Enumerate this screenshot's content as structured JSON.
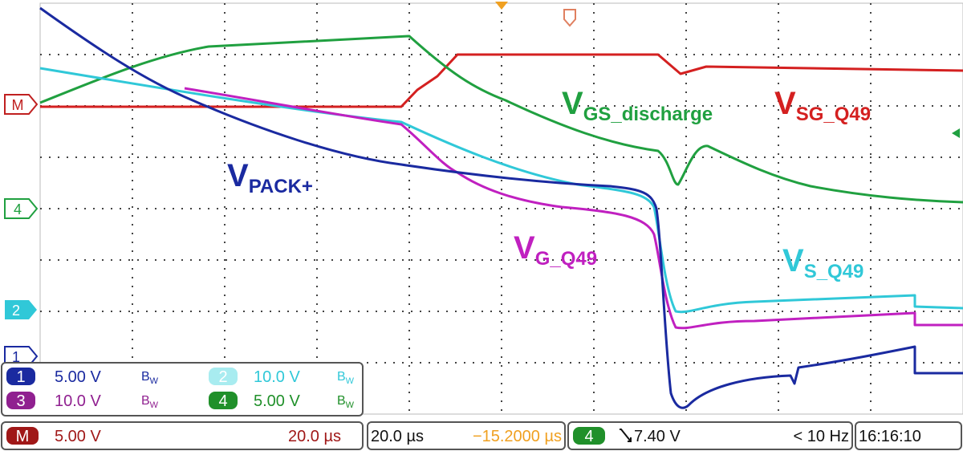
{
  "markers": {
    "math": "M",
    "ch4": "4",
    "ch2": "2",
    "ch1": "1"
  },
  "trace_labels": [
    {
      "main": "V",
      "sub": "PACK+"
    },
    {
      "main": "V",
      "sub": "GS_discharge"
    },
    {
      "main": "V",
      "sub": "SG_Q49"
    },
    {
      "main": "V",
      "sub": "G_Q49"
    },
    {
      "main": "V",
      "sub": "S_Q49"
    }
  ],
  "channels": [
    {
      "id": "1",
      "scale": "5.00 V",
      "bw": {
        "main": "B",
        "sub": "W"
      }
    },
    {
      "id": "2",
      "scale": "10.0 V",
      "bw": {
        "main": "B",
        "sub": "W"
      }
    },
    {
      "id": "3",
      "scale": "10.0 V",
      "bw": {
        "main": "B",
        "sub": "W"
      }
    },
    {
      "id": "4",
      "scale": "5.00 V",
      "bw": {
        "main": "B",
        "sub": "W"
      }
    }
  ],
  "status": {
    "math": {
      "id": "M",
      "scale": "5.00 V",
      "time": "20.0 µs"
    },
    "timebase": "20.0 µs",
    "delay": "−15.2000 µs",
    "trigger": {
      "source": "4",
      "level": "7.40 V",
      "frequency": "< 10 Hz"
    },
    "clock": "16:16:10"
  }
}
